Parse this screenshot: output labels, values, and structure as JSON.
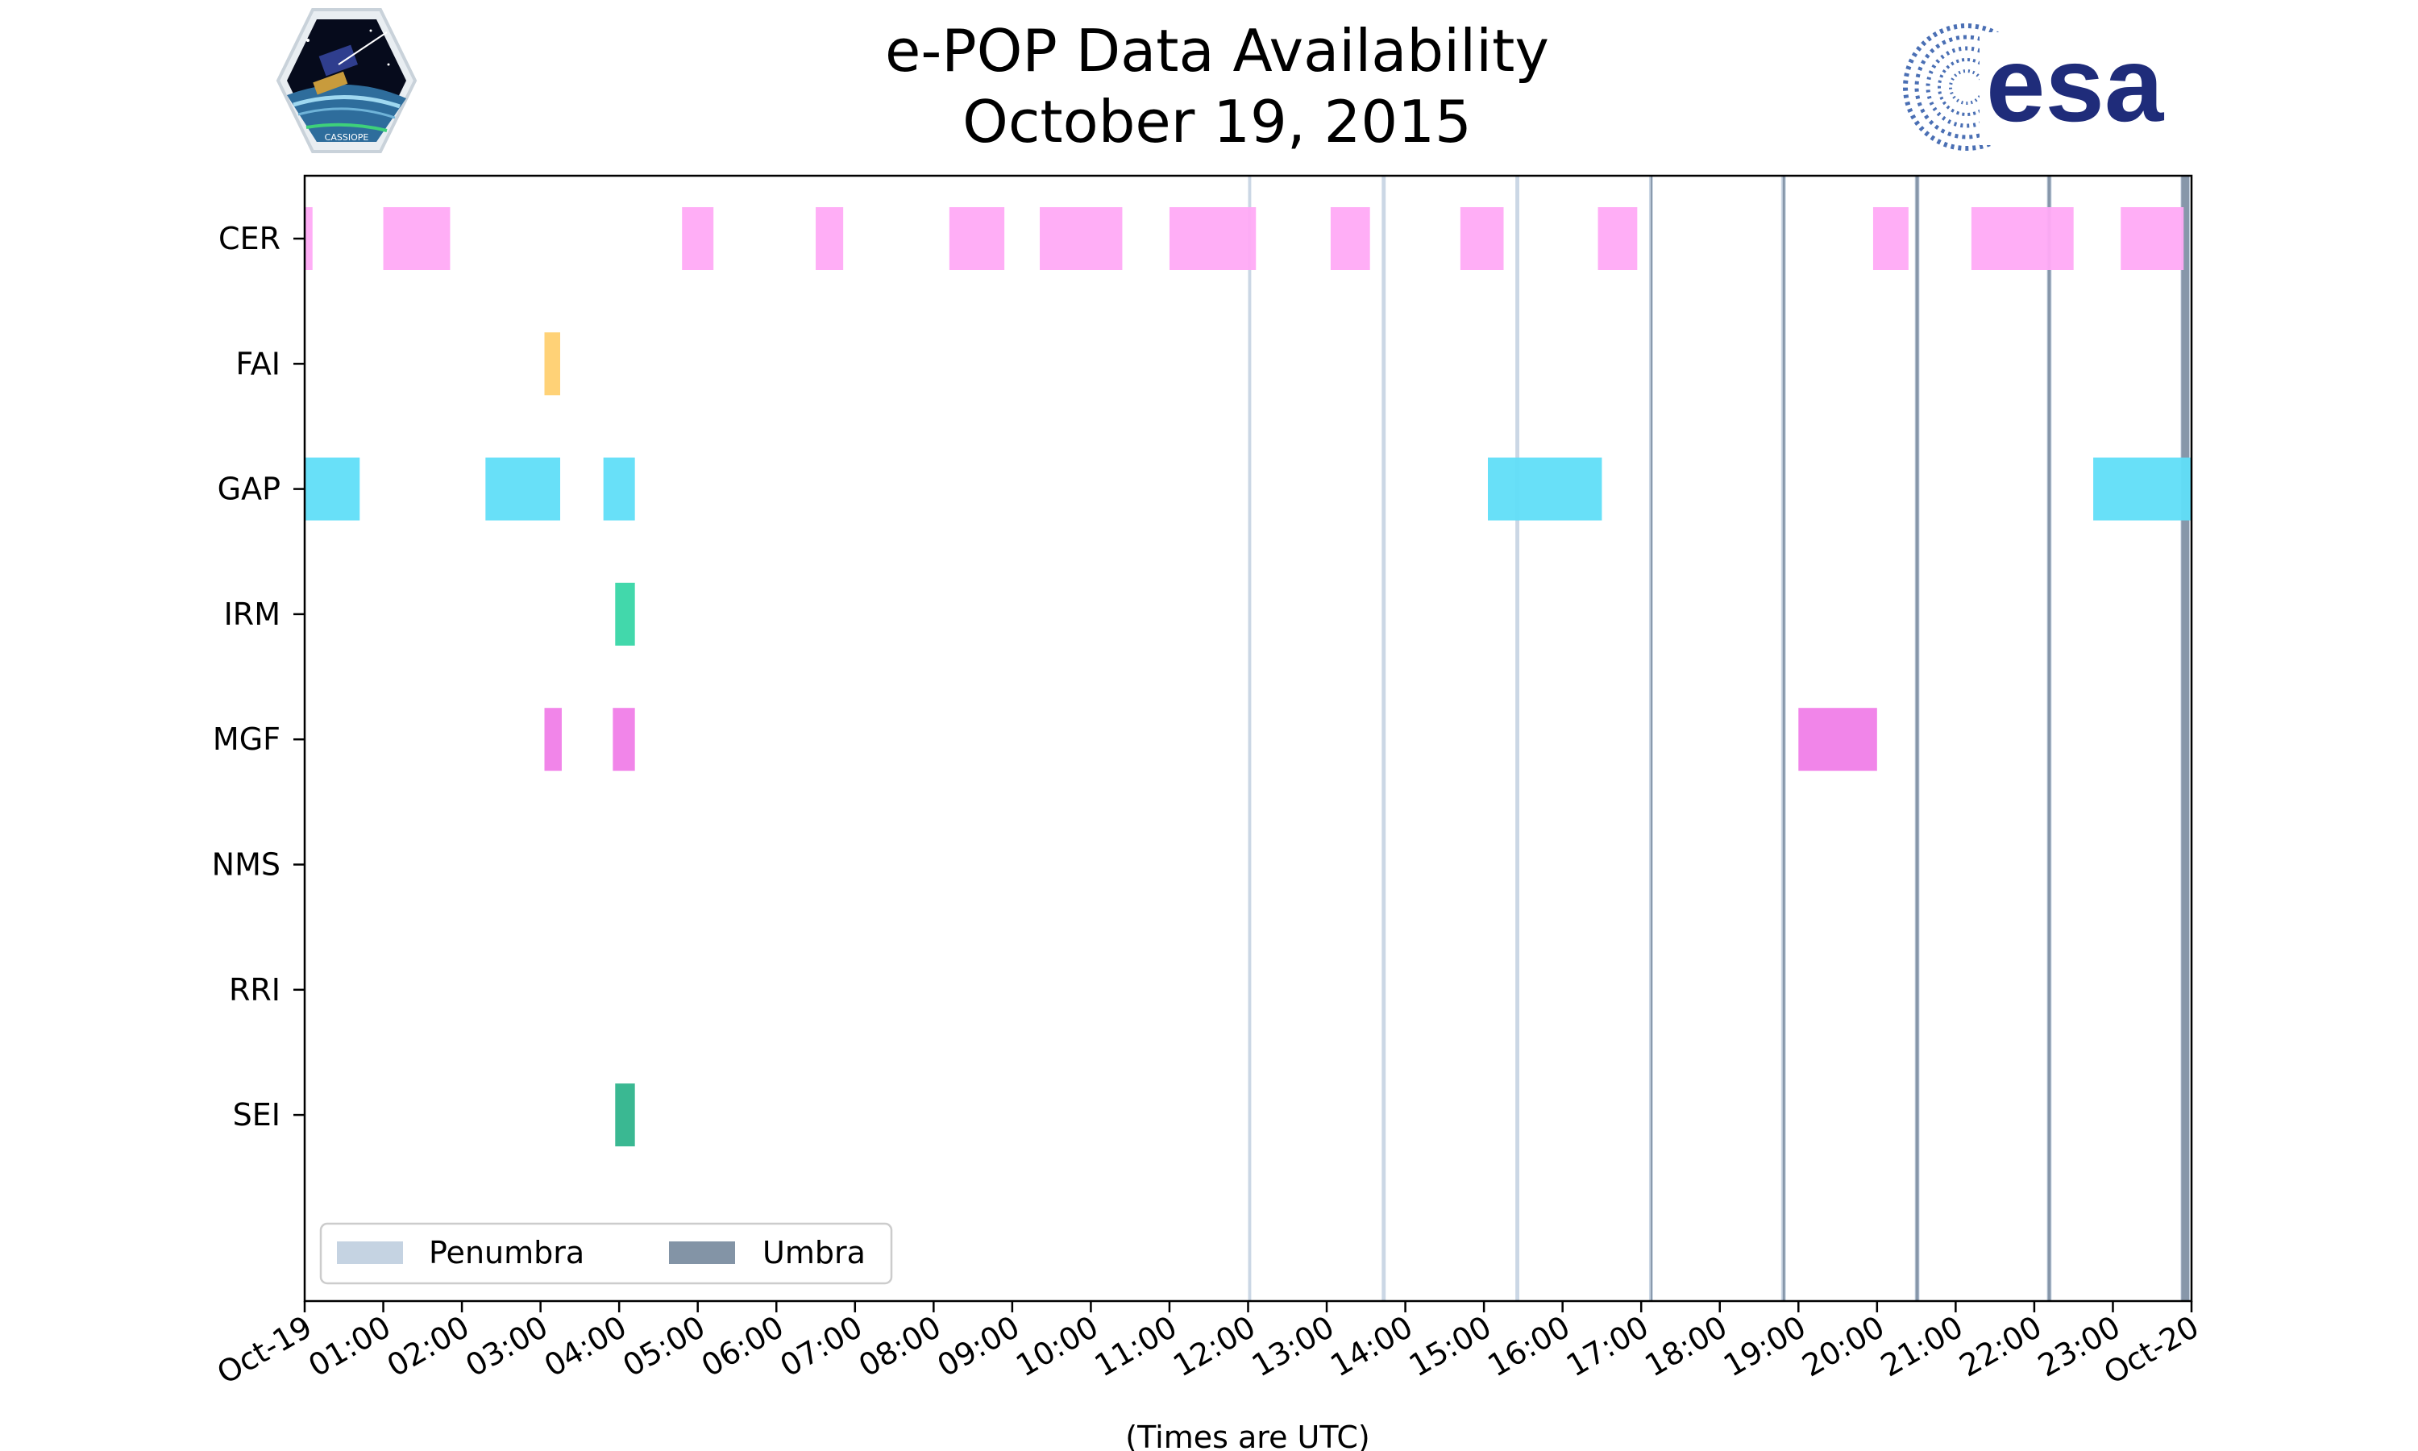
{
  "chart_data": {
    "type": "timeline",
    "title": "e-POP Data Availability",
    "subtitle": "October 19, 2015",
    "xlabel": "(Times are UTC)",
    "x_unit": "hours UTC",
    "xlim": [
      0,
      24
    ],
    "x_ticks": [
      {
        "h": 0,
        "label": "Oct-19"
      },
      {
        "h": 1,
        "label": "01:00"
      },
      {
        "h": 2,
        "label": "02:00"
      },
      {
        "h": 3,
        "label": "03:00"
      },
      {
        "h": 4,
        "label": "04:00"
      },
      {
        "h": 5,
        "label": "05:00"
      },
      {
        "h": 6,
        "label": "06:00"
      },
      {
        "h": 7,
        "label": "07:00"
      },
      {
        "h": 8,
        "label": "08:00"
      },
      {
        "h": 9,
        "label": "09:00"
      },
      {
        "h": 10,
        "label": "10:00"
      },
      {
        "h": 11,
        "label": "11:00"
      },
      {
        "h": 12,
        "label": "12:00"
      },
      {
        "h": 13,
        "label": "13:00"
      },
      {
        "h": 14,
        "label": "14:00"
      },
      {
        "h": 15,
        "label": "15:00"
      },
      {
        "h": 16,
        "label": "16:00"
      },
      {
        "h": 17,
        "label": "17:00"
      },
      {
        "h": 18,
        "label": "18:00"
      },
      {
        "h": 19,
        "label": "19:00"
      },
      {
        "h": 20,
        "label": "20:00"
      },
      {
        "h": 21,
        "label": "21:00"
      },
      {
        "h": 22,
        "label": "22:00"
      },
      {
        "h": 23,
        "label": "23:00"
      },
      {
        "h": 24,
        "label": "Oct-20"
      }
    ],
    "instruments": [
      {
        "name": "CER",
        "color": "#ffaaf5",
        "intervals": [
          [
            0.0,
            0.1
          ],
          [
            1.0,
            1.85
          ],
          [
            4.8,
            5.2
          ],
          [
            6.5,
            6.85
          ],
          [
            8.2,
            8.9
          ],
          [
            9.35,
            10.4
          ],
          [
            11.0,
            12.1
          ],
          [
            13.05,
            13.55
          ],
          [
            14.7,
            15.25
          ],
          [
            16.45,
            16.95
          ],
          [
            19.95,
            20.4
          ],
          [
            21.2,
            22.5
          ],
          [
            23.1,
            23.9
          ]
        ]
      },
      {
        "name": "FAI",
        "color": "#ffd070",
        "intervals": [
          [
            3.05,
            3.25
          ]
        ]
      },
      {
        "name": "GAP",
        "color": "#60def8",
        "intervals": [
          [
            0.0,
            0.7
          ],
          [
            2.3,
            3.25
          ],
          [
            3.8,
            4.2
          ],
          [
            15.05,
            16.5
          ],
          [
            22.75,
            24.0
          ]
        ]
      },
      {
        "name": "IRM",
        "color": "#38d6a6",
        "intervals": [
          [
            3.95,
            4.2
          ]
        ]
      },
      {
        "name": "MGF",
        "color": "#f07ee8",
        "intervals": [
          [
            3.05,
            3.27
          ],
          [
            3.92,
            4.2
          ],
          [
            19.0,
            20.0
          ]
        ]
      },
      {
        "name": "NMS",
        "color": "#cccccc",
        "intervals": []
      },
      {
        "name": "RRI",
        "color": "#cccccc",
        "intervals": []
      },
      {
        "name": "SEI",
        "color": "#2fb48c",
        "intervals": [
          [
            3.95,
            4.2
          ]
        ]
      }
    ],
    "eclipses": [
      {
        "start": 12.0,
        "end": 12.04,
        "type": "penumbra"
      },
      {
        "start": 13.7,
        "end": 13.75,
        "type": "penumbra"
      },
      {
        "start": 15.4,
        "end": 15.45,
        "type": "penumbra"
      },
      {
        "start": 17.1,
        "end": 17.15,
        "type": "penumbra"
      },
      {
        "start": 18.78,
        "end": 18.84,
        "type": "penumbra"
      },
      {
        "start": 20.48,
        "end": 20.54,
        "type": "penumbra"
      },
      {
        "start": 22.16,
        "end": 22.22,
        "type": "penumbra"
      },
      {
        "start": 23.86,
        "end": 23.98,
        "type": "penumbra"
      },
      {
        "start": 17.12,
        "end": 17.14,
        "type": "umbra"
      },
      {
        "start": 18.8,
        "end": 18.83,
        "type": "umbra"
      },
      {
        "start": 20.49,
        "end": 20.53,
        "type": "umbra"
      },
      {
        "start": 22.17,
        "end": 22.21,
        "type": "umbra"
      },
      {
        "start": 23.87,
        "end": 23.97,
        "type": "umbra"
      }
    ],
    "legend": {
      "position": "lower-left",
      "entries": [
        {
          "label": "Penumbra",
          "color": "#c5d3e2"
        },
        {
          "label": "Umbra",
          "color": "#8394a6"
        }
      ]
    }
  },
  "logos": {
    "left": {
      "name": "cassiope-logo",
      "text": "CASSIOPE"
    },
    "right": {
      "name": "esa-logo",
      "text": "esa"
    }
  },
  "colors": {
    "esa_blue": "#1f2c7a",
    "axis": "#000000"
  }
}
